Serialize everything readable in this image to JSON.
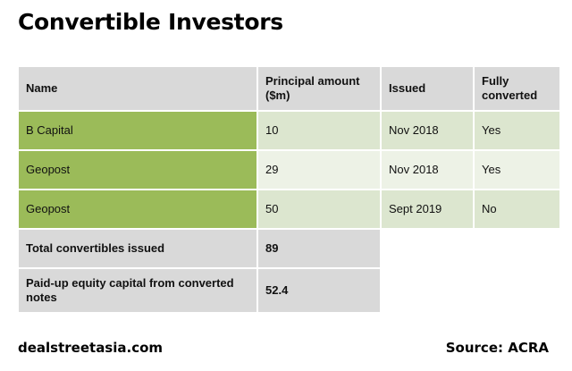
{
  "title": "Convertible Investors",
  "table": {
    "headers": [
      "Name",
      "Principal amount ($m)",
      "Issued",
      "Fully converted"
    ],
    "rows": [
      {
        "name": "B Capital",
        "principal": "10",
        "issued": "Nov 2018",
        "converted": "Yes"
      },
      {
        "name": "Geopost",
        "principal": "29",
        "issued": "Nov 2018",
        "converted": "Yes"
      },
      {
        "name": "Geopost",
        "principal": "50",
        "issued": "Sept 2019",
        "converted": "No"
      }
    ],
    "totals": [
      {
        "label": "Total convertibles issued",
        "value": "89"
      },
      {
        "label": "Paid-up equity capital from converted notes",
        "value": "52.4"
      }
    ]
  },
  "footer": {
    "site": "dealstreetasia.com",
    "source": "Source: ACRA"
  },
  "colors": {
    "header_bg": "#d9d9d9",
    "name_bg": "#9bbb59",
    "row_alt_1": "#dce6cf",
    "row_alt_2": "#edf2e6"
  }
}
